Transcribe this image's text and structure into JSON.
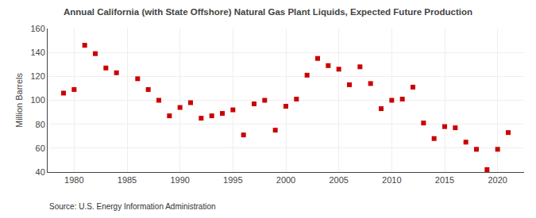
{
  "chart_data": {
    "type": "scatter",
    "title": "Annual California (with State Offshore) Natural Gas Plant Liquids, Expected Future Production",
    "ylabel": "Million Barrels",
    "annotations": [
      "Source: U.S. Energy Information Administration"
    ],
    "x": [
      1979,
      1980,
      1981,
      1982,
      1983,
      1984,
      1986,
      1987,
      1988,
      1989,
      1990,
      1991,
      1992,
      1993,
      1994,
      1995,
      1996,
      1997,
      1998,
      1999,
      2000,
      2001,
      2002,
      2003,
      2004,
      2005,
      2006,
      2007,
      2008,
      2009,
      2010,
      2011,
      2012,
      2013,
      2014,
      2015,
      2016,
      2017,
      2018,
      2019,
      2020,
      2021
    ],
    "values": [
      106,
      109,
      146,
      139,
      127,
      123,
      118,
      109,
      100,
      87,
      94,
      98,
      85,
      87,
      89,
      92,
      71,
      97,
      100,
      75,
      95,
      101,
      121,
      135,
      129,
      126,
      113,
      128,
      114,
      93,
      100,
      101,
      111,
      81,
      68,
      78,
      77,
      65,
      59,
      42,
      59,
      73
    ],
    "color": "#cc0000",
    "marker": "square",
    "xlim": [
      1977.5,
      2022.5
    ],
    "ylim": [
      40,
      160
    ],
    "xticks": [
      1980,
      1985,
      1990,
      1995,
      2000,
      2005,
      2010,
      2015,
      2020
    ],
    "yticks": [
      40,
      60,
      80,
      100,
      120,
      140,
      160
    ],
    "grid": true
  }
}
